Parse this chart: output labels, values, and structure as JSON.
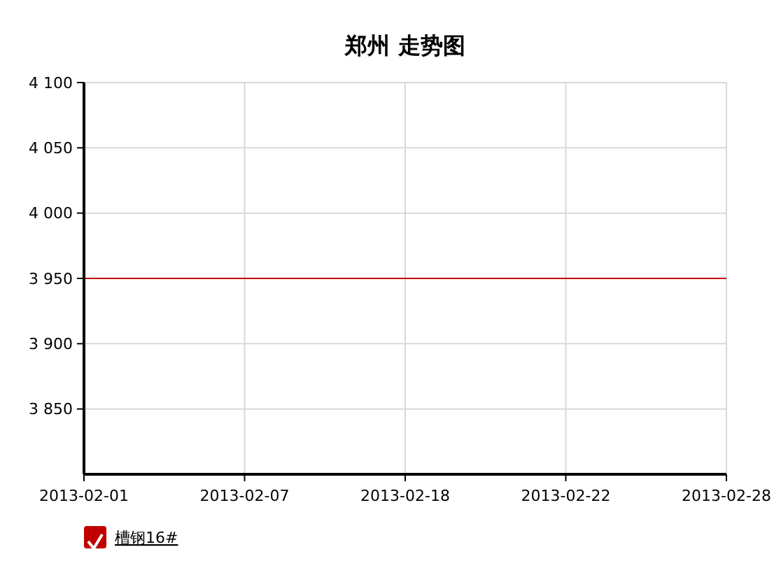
{
  "chart_data": {
    "type": "line",
    "title": "郑州 走势图",
    "categories": [
      "2013-02-01",
      "2013-02-07",
      "2013-02-18",
      "2013-02-22",
      "2013-02-28"
    ],
    "series": [
      {
        "name": "槽钢16#",
        "color": "#c00000",
        "values": [
          3950,
          3950,
          3950,
          3950,
          3950
        ]
      }
    ],
    "ylim": [
      3800,
      4100
    ],
    "yticks": [
      {
        "value": 3850,
        "label": "3 850"
      },
      {
        "value": 3900,
        "label": "3 900"
      },
      {
        "value": 3950,
        "label": "3 950"
      },
      {
        "value": 4000,
        "label": "4 000"
      },
      {
        "value": 4050,
        "label": "4 050"
      },
      {
        "value": 4100,
        "label": "4 100"
      }
    ],
    "grid": true,
    "legend": "bottom left",
    "marker": "none",
    "line_style": "solid"
  }
}
